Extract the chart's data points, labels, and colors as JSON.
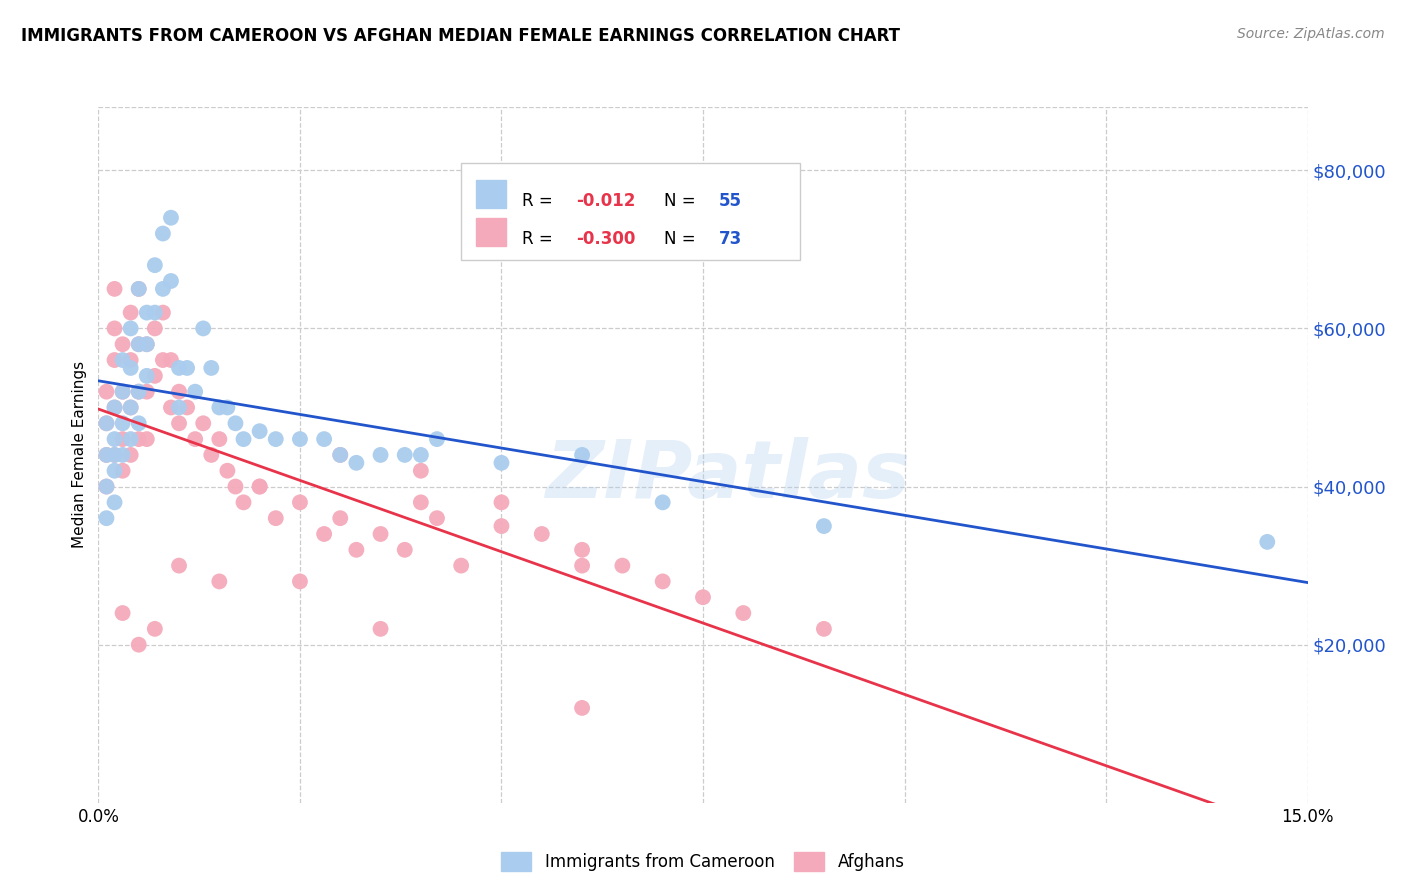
{
  "title": "IMMIGRANTS FROM CAMEROON VS AFGHAN MEDIAN FEMALE EARNINGS CORRELATION CHART",
  "source": "Source: ZipAtlas.com",
  "ylabel": "Median Female Earnings",
  "xlim": [
    0.0,
    0.15
  ],
  "ylim": [
    0,
    88000
  ],
  "yticks": [
    20000,
    40000,
    60000,
    80000
  ],
  "ytick_labels": [
    "$20,000",
    "$40,000",
    "$60,000",
    "$80,000"
  ],
  "R_color": "#e8344a",
  "N_color": "#2255cc",
  "line_cameroon_color": "#2255cc",
  "line_afghan_color": "#e8344a",
  "dot_cameroon_color": "#aaccee",
  "dot_afghan_color": "#f5aabb",
  "watermark": "ZIPatlas",
  "cameroon_x": [
    0.001,
    0.001,
    0.001,
    0.001,
    0.002,
    0.002,
    0.002,
    0.002,
    0.002,
    0.003,
    0.003,
    0.003,
    0.003,
    0.004,
    0.004,
    0.004,
    0.004,
    0.005,
    0.005,
    0.005,
    0.005,
    0.006,
    0.006,
    0.006,
    0.007,
    0.007,
    0.008,
    0.008,
    0.009,
    0.009,
    0.01,
    0.01,
    0.011,
    0.012,
    0.013,
    0.014,
    0.015,
    0.016,
    0.017,
    0.018,
    0.02,
    0.022,
    0.025,
    0.028,
    0.03,
    0.032,
    0.035,
    0.038,
    0.04,
    0.042,
    0.05,
    0.06,
    0.07,
    0.09,
    0.145
  ],
  "cameroon_y": [
    44000,
    48000,
    40000,
    36000,
    50000,
    46000,
    42000,
    38000,
    44000,
    52000,
    56000,
    48000,
    44000,
    60000,
    55000,
    50000,
    46000,
    65000,
    58000,
    52000,
    48000,
    62000,
    58000,
    54000,
    68000,
    62000,
    72000,
    65000,
    74000,
    66000,
    55000,
    50000,
    55000,
    52000,
    60000,
    55000,
    50000,
    50000,
    48000,
    46000,
    47000,
    46000,
    46000,
    46000,
    44000,
    43000,
    44000,
    44000,
    44000,
    46000,
    43000,
    44000,
    38000,
    35000,
    33000
  ],
  "afghan_x": [
    0.001,
    0.001,
    0.001,
    0.001,
    0.002,
    0.002,
    0.002,
    0.002,
    0.002,
    0.003,
    0.003,
    0.003,
    0.003,
    0.004,
    0.004,
    0.004,
    0.004,
    0.005,
    0.005,
    0.005,
    0.005,
    0.006,
    0.006,
    0.006,
    0.007,
    0.007,
    0.008,
    0.008,
    0.009,
    0.009,
    0.01,
    0.01,
    0.011,
    0.012,
    0.013,
    0.014,
    0.015,
    0.016,
    0.017,
    0.018,
    0.02,
    0.022,
    0.025,
    0.028,
    0.03,
    0.032,
    0.035,
    0.038,
    0.04,
    0.042,
    0.045,
    0.05,
    0.055,
    0.06,
    0.065,
    0.07,
    0.075,
    0.08,
    0.09,
    0.003,
    0.005,
    0.007,
    0.01,
    0.015,
    0.02,
    0.03,
    0.04,
    0.05,
    0.06,
    0.025,
    0.035,
    0.06
  ],
  "afghan_y": [
    48000,
    52000,
    44000,
    40000,
    56000,
    50000,
    44000,
    60000,
    65000,
    58000,
    52000,
    46000,
    42000,
    62000,
    56000,
    50000,
    44000,
    65000,
    58000,
    52000,
    46000,
    58000,
    52000,
    46000,
    60000,
    54000,
    62000,
    56000,
    56000,
    50000,
    52000,
    48000,
    50000,
    46000,
    48000,
    44000,
    46000,
    42000,
    40000,
    38000,
    40000,
    36000,
    38000,
    34000,
    36000,
    32000,
    34000,
    32000,
    38000,
    36000,
    30000,
    35000,
    34000,
    32000,
    30000,
    28000,
    26000,
    24000,
    22000,
    24000,
    20000,
    22000,
    30000,
    28000,
    40000,
    44000,
    42000,
    38000,
    30000,
    28000,
    22000,
    12000
  ]
}
